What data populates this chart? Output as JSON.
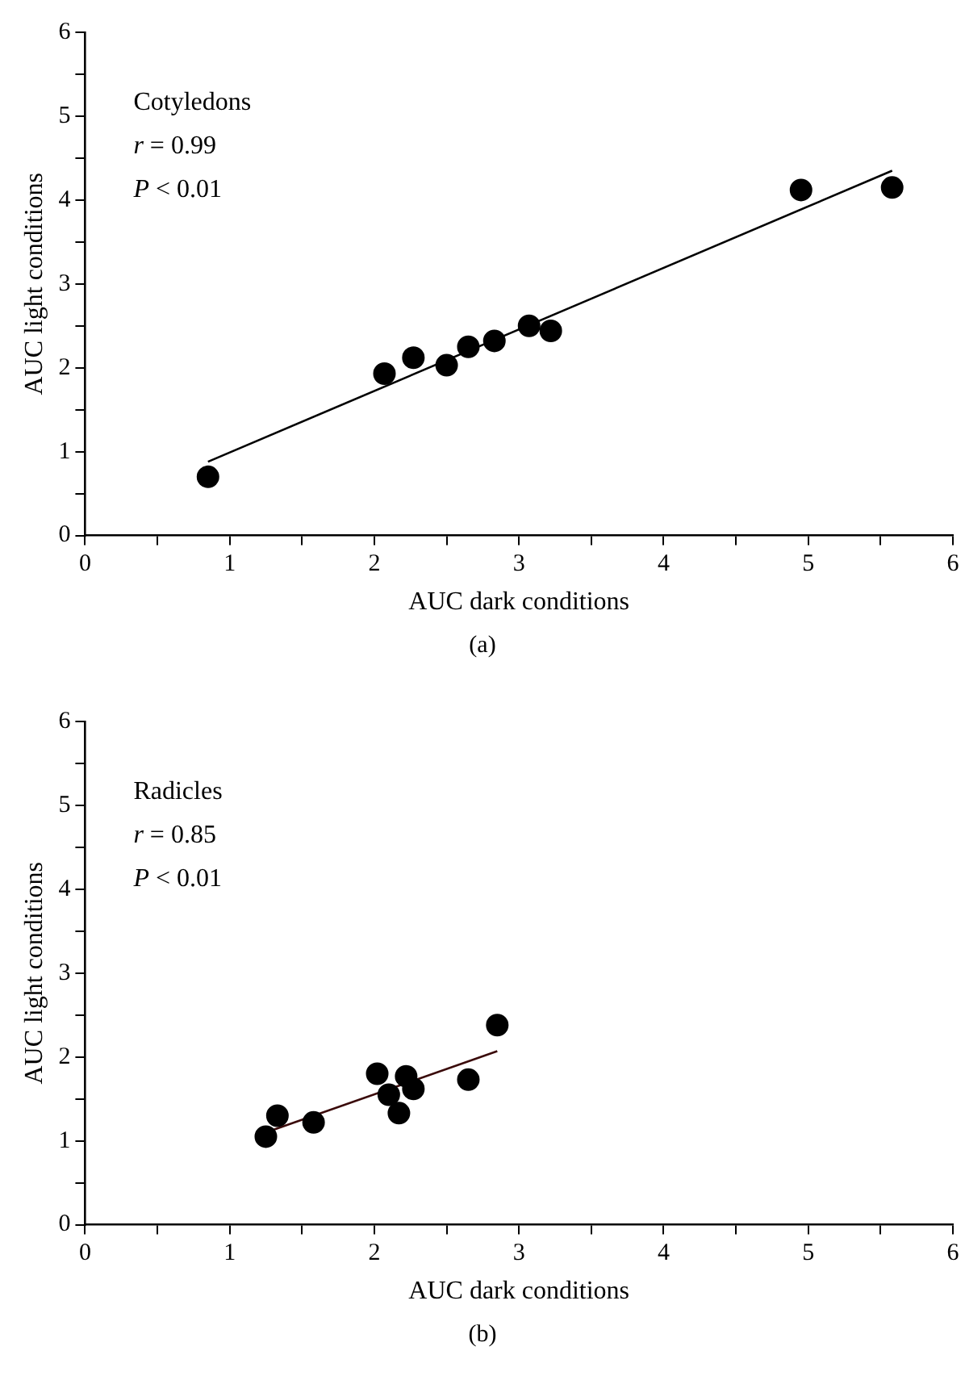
{
  "chart_data": [
    {
      "type": "scatter",
      "xlabel": "AUC dark conditions",
      "ylabel": "AUC light conditions",
      "marker": "circle",
      "grid": false,
      "legend": false,
      "xlim": [
        0,
        6
      ],
      "ylim": [
        0,
        6
      ],
      "xticks": [
        0,
        {
          "value": 0.5,
          "label": null
        },
        1,
        {
          "value": 1.5,
          "label": null
        },
        2,
        {
          "value": 2.5,
          "label": null
        },
        3,
        {
          "value": 3.5,
          "label": null
        },
        4,
        {
          "value": 4.5,
          "label": null
        },
        5,
        {
          "value": 5.5,
          "label": null
        },
        6
      ],
      "yticks": [
        0,
        {
          "value": 0.5,
          "label": null
        },
        1,
        {
          "value": 1.5,
          "label": null
        },
        2,
        {
          "value": 2.5,
          "label": null
        },
        3,
        {
          "value": 3.5,
          "label": null
        },
        4,
        {
          "value": 4.5,
          "label": null
        },
        5,
        {
          "value": 5.5,
          "label": null
        },
        6
      ],
      "series": [
        {
          "color": "#000000",
          "x": [
            0.85,
            2.07,
            2.27,
            2.5,
            2.65,
            2.83,
            3.07,
            3.22,
            4.95,
            5.58
          ],
          "values": [
            0.7,
            1.93,
            2.12,
            2.03,
            2.25,
            2.32,
            2.5,
            2.44,
            4.12,
            4.15
          ]
        },
        {
          "type": "line",
          "color": "#000000",
          "marker": "none",
          "x": [
            0.85,
            5.58
          ],
          "values": [
            0.88,
            4.35
          ]
        }
      ],
      "annotations": [
        "Cotyledons",
        "r = 0.99",
        "P < 0.01",
        "(a)"
      ]
    },
    {
      "type": "scatter",
      "xlabel": "AUC dark conditions",
      "ylabel": "AUC light conditions",
      "marker": "circle",
      "grid": false,
      "legend": false,
      "xlim": [
        0,
        6
      ],
      "ylim": [
        0,
        6
      ],
      "xticks": [
        0,
        {
          "value": 0.5,
          "label": null
        },
        1,
        {
          "value": 1.5,
          "label": null
        },
        2,
        {
          "value": 2.5,
          "label": null
        },
        3,
        {
          "value": 3.5,
          "label": null
        },
        4,
        {
          "value": 4.5,
          "label": null
        },
        5,
        {
          "value": 5.5,
          "label": null
        },
        6
      ],
      "yticks": [
        0,
        {
          "value": 0.5,
          "label": null
        },
        1,
        {
          "value": 1.5,
          "label": null
        },
        2,
        {
          "value": 2.5,
          "label": null
        },
        3,
        {
          "value": 3.5,
          "label": null
        },
        4,
        {
          "value": 4.5,
          "label": null
        },
        5,
        {
          "value": 5.5,
          "label": null
        },
        6
      ],
      "series": [
        {
          "color": "#000000",
          "x": [
            1.25,
            1.33,
            1.58,
            2.02,
            2.1,
            2.17,
            2.22,
            2.27,
            2.65,
            2.85
          ],
          "values": [
            1.05,
            1.3,
            1.22,
            1.8,
            1.55,
            1.33,
            1.77,
            1.62,
            1.73,
            2.38
          ]
        },
        {
          "type": "line",
          "color": "#3a0a0a",
          "marker": "none",
          "x": [
            1.25,
            2.85
          ],
          "values": [
            1.1,
            2.07
          ]
        }
      ],
      "annotations": [
        "Radicles",
        "r = 0.85",
        "P < 0.01",
        "(b)"
      ]
    }
  ]
}
